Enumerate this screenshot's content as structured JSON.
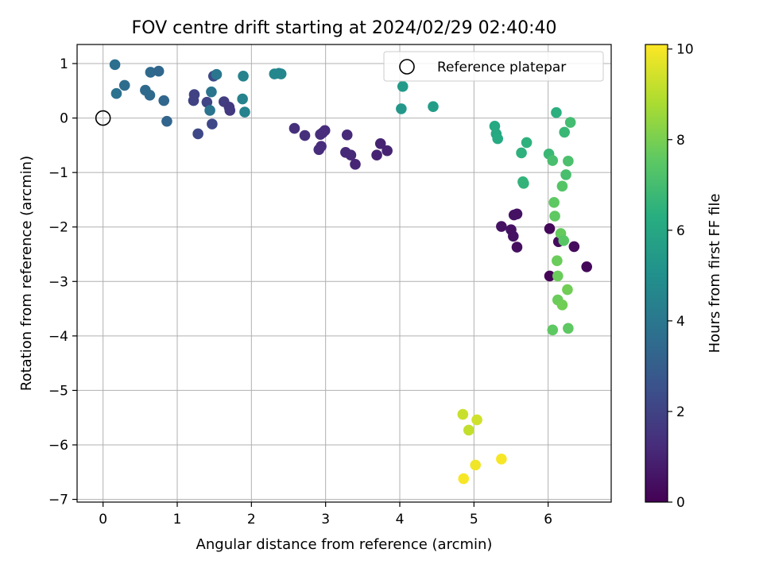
{
  "chart_data": {
    "type": "scatter",
    "title": "FOV centre drift starting at 2024/02/29 02:40:40",
    "xlabel": "Angular distance from reference (arcmin)",
    "ylabel": "Rotation from reference (arcmin)",
    "xlim": [
      -0.35,
      6.85
    ],
    "ylim": [
      -7.05,
      1.35
    ],
    "xticks": [
      0,
      1,
      2,
      3,
      4,
      5,
      6
    ],
    "xtick_labels": [
      "0",
      "1",
      "2",
      "3",
      "4",
      "5",
      "6"
    ],
    "yticks": [
      1,
      0,
      -1,
      -2,
      -3,
      -4,
      -5,
      -6,
      -7
    ],
    "ytick_labels": [
      "1",
      "0",
      "−1",
      "−2",
      "−3",
      "−4",
      "−5",
      "−6",
      "−7"
    ],
    "grid": true,
    "legend": {
      "label": "Reference platepar",
      "placement": "upper right"
    },
    "reference_point": {
      "x": 0,
      "y": 0
    },
    "colorbar": {
      "label": "Hours from first FF file",
      "range": [
        0,
        10.1
      ],
      "ticks": [
        0,
        2,
        4,
        6,
        8,
        10
      ],
      "tick_labels": [
        "0",
        "2",
        "4",
        "6",
        "8",
        "10"
      ],
      "colormap": "viridis"
    },
    "points": [
      {
        "x": 0.16,
        "y": 0.98,
        "h": 3.7
      },
      {
        "x": 0.18,
        "y": 0.45,
        "h": 3.8
      },
      {
        "x": 0.29,
        "y": 0.6,
        "h": 3.6
      },
      {
        "x": 0.57,
        "y": 0.51,
        "h": 3.5
      },
      {
        "x": 0.63,
        "y": 0.42,
        "h": 3.5
      },
      {
        "x": 0.64,
        "y": 0.84,
        "h": 3.5
      },
      {
        "x": 0.75,
        "y": 0.86,
        "h": 3.4
      },
      {
        "x": 0.82,
        "y": 0.32,
        "h": 3.4
      },
      {
        "x": 0.86,
        "y": -0.06,
        "h": 3.3
      },
      {
        "x": 1.22,
        "y": 0.32,
        "h": 2.0
      },
      {
        "x": 1.23,
        "y": 0.43,
        "h": 2.0
      },
      {
        "x": 1.28,
        "y": -0.29,
        "h": 2.2
      },
      {
        "x": 1.4,
        "y": 0.29,
        "h": 2.1
      },
      {
        "x": 1.44,
        "y": 0.14,
        "h": 3.9
      },
      {
        "x": 1.46,
        "y": 0.48,
        "h": 3.9
      },
      {
        "x": 1.47,
        "y": -0.11,
        "h": 2.2
      },
      {
        "x": 1.49,
        "y": 0.77,
        "h": 2.3
      },
      {
        "x": 1.53,
        "y": 0.8,
        "h": 4.0
      },
      {
        "x": 1.63,
        "y": 0.3,
        "h": 1.8
      },
      {
        "x": 1.7,
        "y": 0.2,
        "h": 1.7
      },
      {
        "x": 1.71,
        "y": 0.14,
        "h": 1.7
      },
      {
        "x": 1.88,
        "y": 0.35,
        "h": 4.5
      },
      {
        "x": 1.89,
        "y": 0.77,
        "h": 4.5
      },
      {
        "x": 1.91,
        "y": 0.11,
        "h": 4.5
      },
      {
        "x": 2.31,
        "y": 0.81,
        "h": 4.7
      },
      {
        "x": 2.37,
        "y": 0.82,
        "h": 4.7
      },
      {
        "x": 2.4,
        "y": 0.81,
        "h": 4.7
      },
      {
        "x": 2.58,
        "y": -0.19,
        "h": 1.4
      },
      {
        "x": 2.72,
        "y": -0.32,
        "h": 1.4
      },
      {
        "x": 2.91,
        "y": -0.58,
        "h": 1.3
      },
      {
        "x": 2.94,
        "y": -0.52,
        "h": 1.3
      },
      {
        "x": 2.93,
        "y": -0.3,
        "h": 1.3
      },
      {
        "x": 2.96,
        "y": -0.27,
        "h": 1.3
      },
      {
        "x": 2.99,
        "y": -0.23,
        "h": 1.3
      },
      {
        "x": 3.27,
        "y": -0.63,
        "h": 1.2
      },
      {
        "x": 3.29,
        "y": -0.31,
        "h": 1.2
      },
      {
        "x": 3.34,
        "y": -0.68,
        "h": 1.2
      },
      {
        "x": 3.4,
        "y": -0.85,
        "h": 1.1
      },
      {
        "x": 3.69,
        "y": -0.68,
        "h": 1.0
      },
      {
        "x": 3.74,
        "y": -0.47,
        "h": 1.0
      },
      {
        "x": 3.83,
        "y": -0.6,
        "h": 1.0
      },
      {
        "x": 4.02,
        "y": 0.17,
        "h": 5.4
      },
      {
        "x": 4.04,
        "y": 0.58,
        "h": 5.5
      },
      {
        "x": 4.45,
        "y": 0.21,
        "h": 5.6
      },
      {
        "x": 4.85,
        "y": -5.44,
        "h": 9.3
      },
      {
        "x": 4.86,
        "y": -6.62,
        "h": 10.0
      },
      {
        "x": 4.93,
        "y": -5.73,
        "h": 9.2
      },
      {
        "x": 5.02,
        "y": -6.37,
        "h": 9.9
      },
      {
        "x": 5.04,
        "y": -5.54,
        "h": 9.4
      },
      {
        "x": 5.28,
        "y": -0.15,
        "h": 6.1
      },
      {
        "x": 5.3,
        "y": -0.29,
        "h": 6.1
      },
      {
        "x": 5.32,
        "y": -0.38,
        "h": 6.2
      },
      {
        "x": 5.37,
        "y": -1.99,
        "h": 0.5
      },
      {
        "x": 5.37,
        "y": -6.26,
        "h": 10.0
      },
      {
        "x": 5.5,
        "y": -2.05,
        "h": 0.5
      },
      {
        "x": 5.53,
        "y": -2.17,
        "h": 0.5
      },
      {
        "x": 5.54,
        "y": -1.78,
        "h": 0.5
      },
      {
        "x": 5.58,
        "y": -1.76,
        "h": 0.5
      },
      {
        "x": 5.58,
        "y": -2.37,
        "h": 0.4
      },
      {
        "x": 5.64,
        "y": -0.64,
        "h": 6.5
      },
      {
        "x": 5.66,
        "y": -1.17,
        "h": 6.6
      },
      {
        "x": 5.67,
        "y": -1.2,
        "h": 6.6
      },
      {
        "x": 5.71,
        "y": -0.45,
        "h": 6.5
      },
      {
        "x": 6.01,
        "y": -0.66,
        "h": 6.8
      },
      {
        "x": 6.02,
        "y": -2.03,
        "h": 0.2
      },
      {
        "x": 6.02,
        "y": -2.9,
        "h": 0.1
      },
      {
        "x": 6.06,
        "y": -3.89,
        "h": 7.6
      },
      {
        "x": 6.06,
        "y": -0.78,
        "h": 7.1
      },
      {
        "x": 6.08,
        "y": -1.55,
        "h": 7.6
      },
      {
        "x": 6.09,
        "y": -1.8,
        "h": 7.6
      },
      {
        "x": 6.11,
        "y": 0.1,
        "h": 6.4
      },
      {
        "x": 6.12,
        "y": -2.62,
        "h": 7.8
      },
      {
        "x": 6.13,
        "y": -2.9,
        "h": 7.8
      },
      {
        "x": 6.13,
        "y": -3.34,
        "h": 7.8
      },
      {
        "x": 6.14,
        "y": -2.27,
        "h": 0.3
      },
      {
        "x": 6.17,
        "y": -2.12,
        "h": 7.7
      },
      {
        "x": 6.19,
        "y": -1.25,
        "h": 7.4
      },
      {
        "x": 6.19,
        "y": -3.43,
        "h": 7.9
      },
      {
        "x": 6.21,
        "y": -2.25,
        "h": 7.5
      },
      {
        "x": 6.22,
        "y": -0.26,
        "h": 6.8
      },
      {
        "x": 6.24,
        "y": -1.04,
        "h": 7.1
      },
      {
        "x": 6.26,
        "y": -3.15,
        "h": 7.9
      },
      {
        "x": 6.27,
        "y": -0.79,
        "h": 7.2
      },
      {
        "x": 6.27,
        "y": -3.86,
        "h": 7.6
      },
      {
        "x": 6.3,
        "y": -0.08,
        "h": 7.0
      },
      {
        "x": 6.35,
        "y": -2.36,
        "h": 0.3
      },
      {
        "x": 6.52,
        "y": -2.73,
        "h": 0.2
      }
    ]
  }
}
